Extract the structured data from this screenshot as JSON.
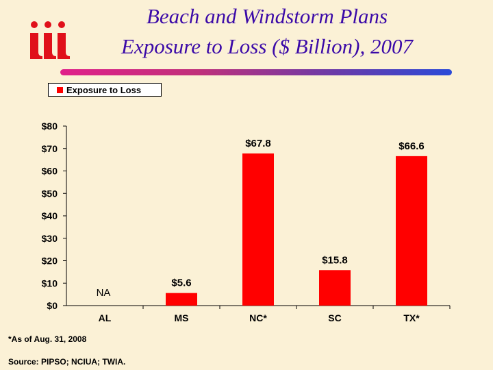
{
  "header": {
    "title_line1": "Beach and Windstorm Plans",
    "title_line2": "Exposure to Loss ($ Billion), 2007",
    "logo_text": "iii"
  },
  "colors": {
    "bar": "#ff0000",
    "title": "#3b0aa8"
  },
  "chart_data": {
    "type": "bar",
    "categories": [
      "AL",
      "MS",
      "NC*",
      "SC",
      "TX*"
    ],
    "series": [
      {
        "name": "Exposure to Loss",
        "values": [
          null,
          5.6,
          67.8,
          15.8,
          66.6
        ]
      }
    ],
    "data_labels": [
      "NA",
      "$5.6",
      "$67.8",
      "$15.8",
      "$66.6"
    ],
    "y_ticks": [
      "$0",
      "$10",
      "$20",
      "$30",
      "$40",
      "$50",
      "$60",
      "$70",
      "$80"
    ],
    "ylim": [
      0,
      80
    ],
    "ytick_step": 10,
    "legend_position": "top-left",
    "grid": false
  },
  "footnotes": {
    "asof": "*As of Aug. 31, 2008",
    "source": "Source: PIPSO; NCIUA; TWIA."
  }
}
